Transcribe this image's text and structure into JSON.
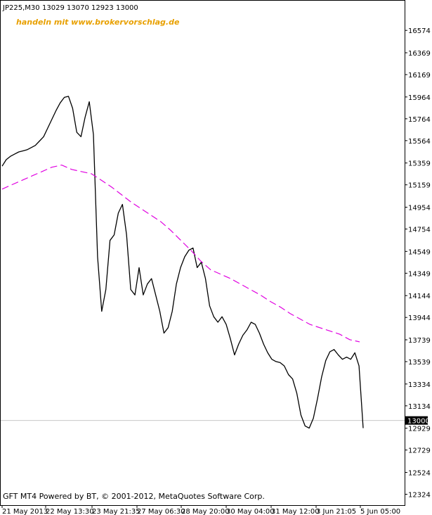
{
  "header": {
    "symbol": "JP225,M30",
    "ohlc": "13029 13070 12923 13000",
    "promo": "handeln mit www.brokervorschlag.de"
  },
  "footer": {
    "credit": "GFT MT4 Powered by BT, © 2001-2012, MetaQuotes Software Corp."
  },
  "colors": {
    "price": "#000000",
    "ma": "#e000e0",
    "promo": "#e8a000",
    "grid": "#c8c8c8",
    "badge": "#000000"
  },
  "chart_data": {
    "type": "line",
    "title": "",
    "ylim": [
      12224,
      16846
    ],
    "y_ticks": [
      16574,
      16369,
      16169,
      15964,
      15764,
      15564,
      15359,
      15159,
      14954,
      14754,
      14549,
      14349,
      14144,
      13944,
      13739,
      13539,
      13334,
      13134,
      12929,
      12729,
      12524,
      12324
    ],
    "x_labels": [
      "21 May 2013",
      "22 May 13:30",
      "23 May 21:35",
      "27 May 06:30",
      "28 May 20:00",
      "30 May 04:00",
      "31 May 12:00",
      "3 Jun 21:05",
      "5 Jun 05:00"
    ],
    "current_price": 13000,
    "series": [
      {
        "style": "solid",
        "values": [
          15330,
          15390,
          15420,
          15440,
          15460,
          15470,
          15480,
          15500,
          15520,
          15560,
          15600,
          15680,
          15760,
          15840,
          15910,
          15960,
          15970,
          15860,
          15640,
          15600,
          15780,
          15920,
          15620,
          14500,
          14000,
          14200,
          14650,
          14700,
          14900,
          14980,
          14700,
          14200,
          14150,
          14400,
          14150,
          14250,
          14300,
          14150,
          14000,
          13800,
          13850,
          14000,
          14250,
          14400,
          14500,
          14560,
          14580,
          14400,
          14450,
          14300,
          14050,
          13950,
          13900,
          13950,
          13880,
          13750,
          13600,
          13700,
          13780,
          13830,
          13900,
          13880,
          13800,
          13700,
          13620,
          13560,
          13540,
          13530,
          13500,
          13420,
          13380,
          13250,
          13050,
          12950,
          12930,
          13020,
          13200,
          13400,
          13550,
          13630,
          13650,
          13600,
          13560,
          13580,
          13560,
          13620,
          13500,
          12930
        ]
      },
      {
        "style": "dashed",
        "values": [
          15120,
          15160,
          15200,
          15240,
          15280,
          15320,
          15340,
          15300,
          15280,
          15260,
          15200,
          15140,
          15070,
          15000,
          14940,
          14880,
          14820,
          14740,
          14650,
          14560,
          14460,
          14380,
          14340,
          14300,
          14250,
          14200,
          14150,
          14090,
          14040,
          13980,
          13930,
          13880,
          13850,
          13820,
          13790,
          13740,
          13720
        ]
      }
    ]
  }
}
